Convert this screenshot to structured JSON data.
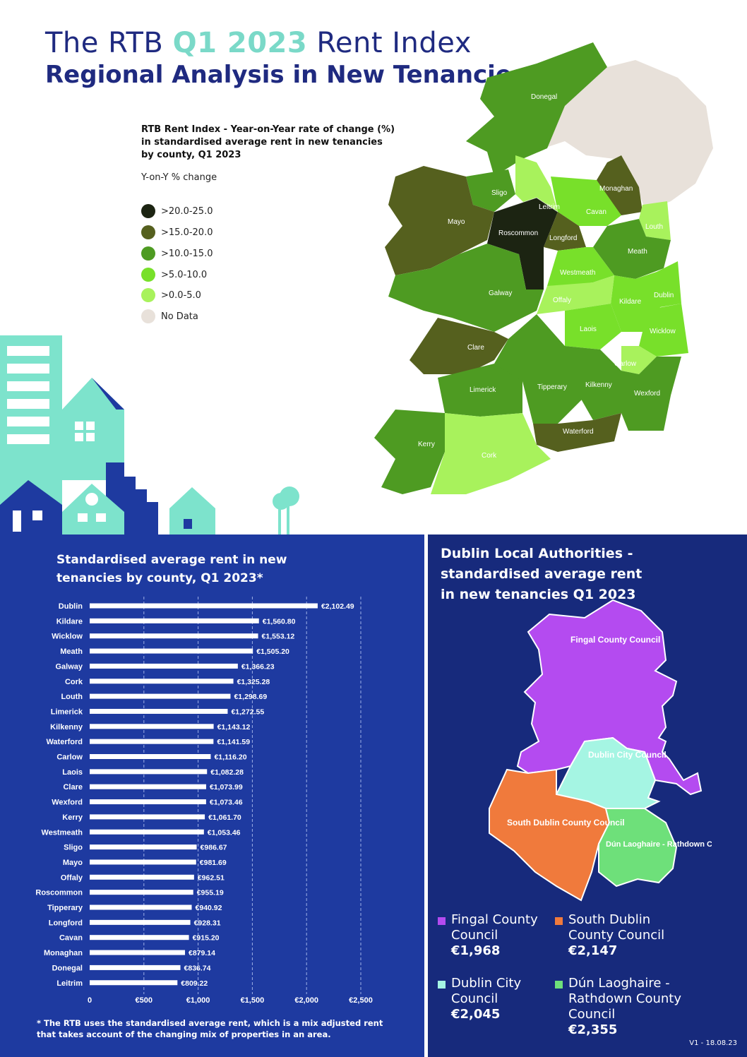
{
  "header": {
    "title_prefix": "The RTB",
    "title_highlight": "Q1 2023",
    "title_suffix": "Rent Index",
    "subtitle": "Regional Analysis in New Tenancies"
  },
  "map_legend": {
    "title": "RTB Rent Index - Year-on-Year rate of change (%) in standardised average rent in new tenancies by county, Q1 2023",
    "subtitle": "Y-on-Y % change",
    "items": [
      {
        "label": ">20.0-25.0",
        "color": "#1c2412"
      },
      {
        "label": ">15.0-20.0",
        "color": "#55601e"
      },
      {
        "label": ">10.0-15.0",
        "color": "#4e9b22"
      },
      {
        "label": ">5.0-10.0",
        "color": "#78e02a"
      },
      {
        "label": ">0.0-5.0",
        "color": "#a8f25c"
      },
      {
        "label": "No Data",
        "color": "#e8e1da"
      }
    ]
  },
  "map_labels": {
    "donegal": "Donegal",
    "monaghan": "Monaghan",
    "sligo": "Sligo",
    "leitrim": "Leitrim",
    "cavan": "Cavan",
    "mayo": "Mayo",
    "roscommon": "Roscommon",
    "longford": "Longford",
    "louth": "Louth",
    "meath": "Meath",
    "westmeath": "Westmeath",
    "galway": "Galway",
    "offaly": "Offaly",
    "kildare": "Kildare",
    "dublin": "Dublin",
    "laois": "Laois",
    "wicklow": "Wicklow",
    "clare": "Clare",
    "carlow": "Carlow",
    "limerick": "Limerick",
    "tipperary": "Tipperary",
    "kilkenny": "Kilkenny",
    "wexford": "Wexford",
    "waterford": "Waterford",
    "kerry": "Kerry",
    "cork": "Cork"
  },
  "chart_data": {
    "type": "bar",
    "orientation": "horizontal",
    "title": "Standardised average rent in new tenancies by county, Q1 2023*",
    "categories": [
      "Dublin",
      "Kildare",
      "Wicklow",
      "Meath",
      "Galway",
      "Cork",
      "Louth",
      "Limerick",
      "Kilkenny",
      "Waterford",
      "Carlow",
      "Laois",
      "Clare",
      "Wexford",
      "Kerry",
      "Westmeath",
      "Sligo",
      "Mayo",
      "Offaly",
      "Roscommon",
      "Tipperary",
      "Longford",
      "Cavan",
      "Monaghan",
      "Donegal",
      "Leitrim"
    ],
    "values": [
      2102.49,
      1560.8,
      1553.12,
      1505.2,
      1366.23,
      1325.28,
      1298.69,
      1272.55,
      1143.12,
      1141.59,
      1116.2,
      1082.28,
      1073.99,
      1073.46,
      1061.7,
      1053.46,
      986.67,
      981.69,
      962.51,
      955.19,
      940.92,
      928.31,
      915.2,
      879.14,
      836.74,
      809.22
    ],
    "value_labels": [
      "€2,102.49",
      "€1,560.80",
      "€1,553.12",
      "€1,505.20",
      "€1,366.23",
      "€1,325.28",
      "€1,298.69",
      "€1,272.55",
      "€1,143.12",
      "€1,141.59",
      "€1,116.20",
      "€1,082.28",
      "€1,073.99",
      "€1,073.46",
      "€1,061.70",
      "€1,053.46",
      "€986.67",
      "€981.69",
      "€962.51",
      "€955.19",
      "€940.92",
      "€928.31",
      "€915.20",
      "€879.14",
      "€836.74",
      "€809.22"
    ],
    "xlim": [
      0,
      2500
    ],
    "xticks": [
      0,
      500,
      1000,
      1500,
      2000,
      2500
    ],
    "xtick_labels": [
      "0",
      "€500",
      "€1,000",
      "€1,500",
      "€2,000",
      "€2,500"
    ],
    "grid": "vertical dashed",
    "bar_color": "#ffffff"
  },
  "footnote": "* The RTB uses the standardised average rent, which is a mix adjusted rent that takes account of the changing mix of properties in an area.",
  "dublin": {
    "title": "Dublin Local Authorities - standardised average rent in new tenancies Q1 2023",
    "map_labels": {
      "fingal": "Fingal County Council",
      "city": "Dublin City Council",
      "south": "South Dublin County Council",
      "dlr": "Dún Laoghaire - Rathdown County Council"
    },
    "authorities": [
      {
        "name": "Fingal County Council",
        "value": "€1,968",
        "color": "#b44bf0"
      },
      {
        "name": "South Dublin County Council",
        "value": "€2,147",
        "color": "#f07a3c"
      },
      {
        "name": "Dublin City Council",
        "value": "€2,045",
        "color": "#a5f5e3"
      },
      {
        "name": "Dún Laoghaire - Rathdown County Council",
        "value": "€2,355",
        "color": "#6ee07a"
      }
    ]
  },
  "version": "V1 - 18.08.23"
}
